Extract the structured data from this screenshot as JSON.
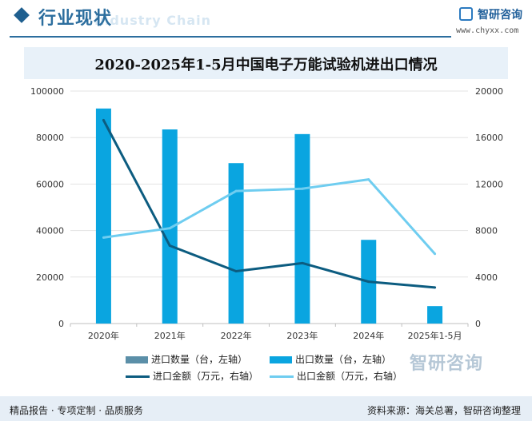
{
  "header": {
    "section_title": "行业现状",
    "section_title_en": "Industry Chain",
    "logo_text": "智研咨询",
    "logo_url": "www.chyxx.com"
  },
  "watermark": "智研咨询",
  "footer": {
    "left": "精品报告 · 专项定制 · 品质服务",
    "right": "资料来源：海关总署，智研咨询整理"
  },
  "colors": {
    "import_qty": "#5b8fa8",
    "export_qty": "#0aa5e0",
    "import_amt": "#0c5c80",
    "export_amt": "#6fcdf0"
  },
  "chart_data": {
    "type": "bar",
    "title": "2020-2025年1-5月中国电子万能试验机进出口情况",
    "categories": [
      "2020年",
      "2021年",
      "2022年",
      "2023年",
      "2024年",
      "2025年1-5月"
    ],
    "y_left": {
      "range": [
        0,
        100000
      ],
      "ticks": [
        "0",
        "20000",
        "40000",
        "60000",
        "80000",
        "100000"
      ]
    },
    "y_right": {
      "range": [
        0,
        20000
      ],
      "ticks": [
        "0",
        "4000",
        "8000",
        "12000",
        "16000",
        "20000"
      ]
    },
    "grid": true,
    "legend_placement": "bottom",
    "series": [
      {
        "name": "进口数量（台，左轴）",
        "type": "bar",
        "axis": "left",
        "values": [
          0,
          0,
          0,
          0,
          0,
          0
        ]
      },
      {
        "name": "出口数量（台，左轴）",
        "type": "bar",
        "axis": "left",
        "values": [
          92500,
          83500,
          69000,
          81500,
          36000,
          7500
        ]
      },
      {
        "name": "进口金额（万元，右轴）",
        "type": "line",
        "axis": "right",
        "values": [
          17500,
          6700,
          4500,
          5200,
          3600,
          3100
        ]
      },
      {
        "name": "出口金额（万元，右轴）",
        "type": "line",
        "axis": "right",
        "values": [
          7400,
          8200,
          11400,
          11600,
          12400,
          6000
        ]
      }
    ]
  }
}
